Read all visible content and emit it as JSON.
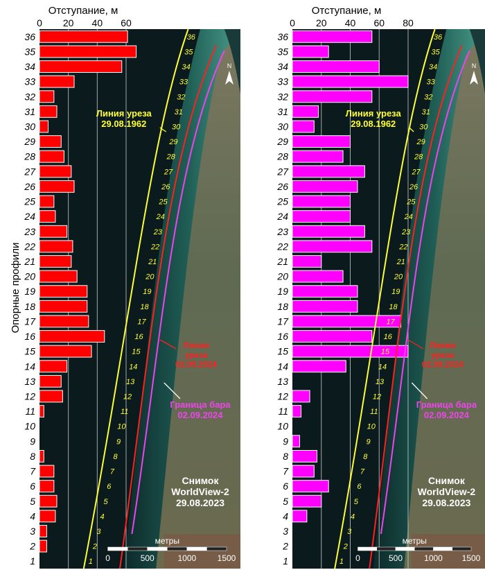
{
  "y_axis_label": "Опорные профили",
  "chart_data": [
    {
      "type": "bar",
      "orientation": "horizontal",
      "xlabel": "Отступание, м",
      "ylabel": "Опорные профили",
      "xlim": [
        0,
        60
      ],
      "xticks": [
        0,
        20,
        40,
        60
      ],
      "bar_color": "#ff0000",
      "categories": [
        "1",
        "2",
        "3",
        "4",
        "5",
        "6",
        "7",
        "8",
        "9",
        "10",
        "11",
        "12",
        "13",
        "14",
        "15",
        "16",
        "17",
        "18",
        "19",
        "20",
        "21",
        "22",
        "23",
        "24",
        "25",
        "26",
        "27",
        "28",
        "29",
        "30",
        "31",
        "32",
        "33",
        "34",
        "35",
        "36"
      ],
      "values": [
        0,
        5,
        5,
        11,
        12,
        10,
        10,
        3,
        0,
        0,
        3,
        16,
        15,
        19,
        36,
        45,
        34,
        33,
        33,
        26,
        22,
        23,
        19,
        11,
        10,
        24,
        22,
        17,
        15,
        6,
        12,
        10,
        24,
        57,
        67,
        61
      ]
    },
    {
      "type": "bar",
      "orientation": "horizontal",
      "xlabel": "Отступание, м",
      "ylabel": "Опорные профили",
      "xlim": [
        0,
        80
      ],
      "xticks": [
        0,
        20,
        40,
        60,
        80
      ],
      "bar_color": "#ff00ff",
      "categories": [
        "1",
        "2",
        "3",
        "4",
        "5",
        "6",
        "7",
        "8",
        "9",
        "10",
        "11",
        "12",
        "13",
        "14",
        "15",
        "16",
        "17",
        "18",
        "19",
        "20",
        "21",
        "22",
        "23",
        "24",
        "25",
        "26",
        "27",
        "28",
        "29",
        "30",
        "31",
        "32",
        "33",
        "34",
        "35",
        "36"
      ],
      "values": [
        0,
        0,
        0,
        10,
        20,
        25,
        15,
        17,
        5,
        0,
        6,
        12,
        0,
        37,
        80,
        55,
        75,
        45,
        45,
        35,
        20,
        55,
        50,
        40,
        40,
        45,
        50,
        35,
        40,
        15,
        18,
        55,
        80,
        60,
        25,
        55
      ]
    }
  ],
  "map": {
    "line_1962_label": "Линия уреза\n29.08.1962",
    "line_2024_label": "Линия\nуреза\n02.09.2024",
    "bar_boundary_label": "Граница бара\n02.09.2024",
    "image_label": "Снимок\nWorldView-2\n29.08.2023",
    "scale_title": "метры",
    "scale_ticks": [
      "0",
      "500",
      "1000",
      "1500"
    ],
    "north_label": "N",
    "colors": {
      "sea": "#0b1a1c",
      "shallow": "#2f7f73",
      "line_1962": "#ffff33",
      "line_2024": "#ff2020",
      "bar_boundary": "#ee44ee",
      "land": "#6e6a50"
    }
  }
}
